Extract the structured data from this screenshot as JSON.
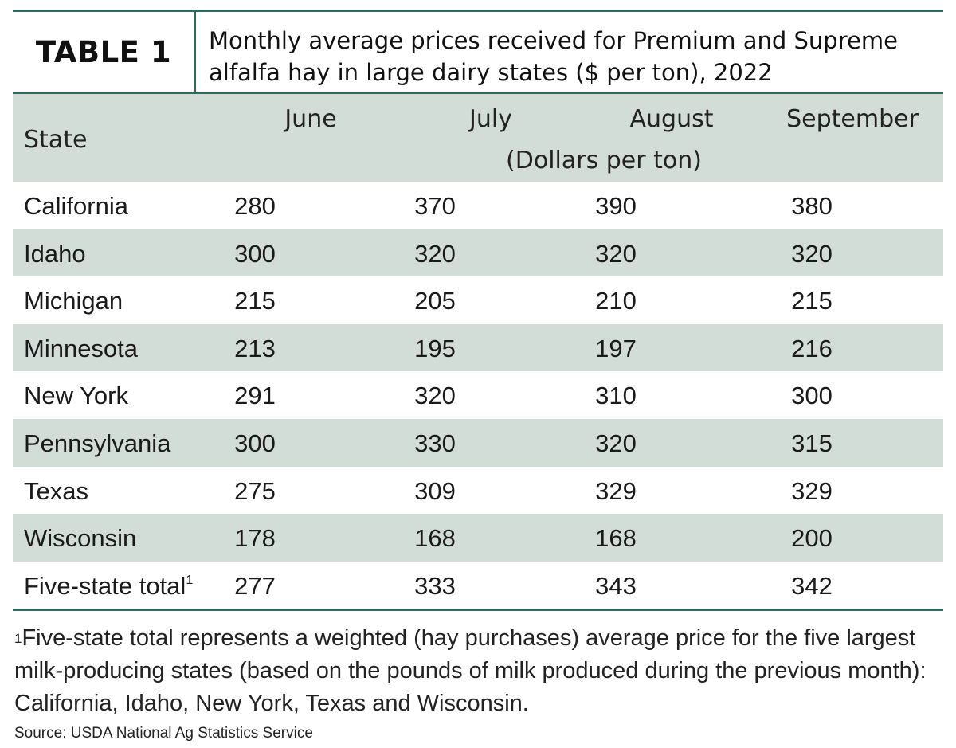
{
  "title": {
    "label": "TABLE 1",
    "text": "Monthly average prices received for Premium and Supreme alfalfa hay in large dairy states ($ per ton), 2022"
  },
  "header": {
    "state": "State",
    "months": [
      "June",
      "July",
      "August",
      "September"
    ],
    "unit": "(Dollars per ton)"
  },
  "rows": [
    {
      "state": "California",
      "values": [
        "280",
        "370",
        "390",
        "380"
      ]
    },
    {
      "state": "Idaho",
      "values": [
        "300",
        "320",
        "320",
        "320"
      ]
    },
    {
      "state": "Michigan",
      "values": [
        "215",
        "205",
        "210",
        "215"
      ]
    },
    {
      "state": "Minnesota",
      "values": [
        "213",
        "195",
        "197",
        "216"
      ]
    },
    {
      "state": "New York",
      "values": [
        "291",
        "320",
        "310",
        "300"
      ]
    },
    {
      "state": "Pennsylvania",
      "values": [
        "300",
        "330",
        "320",
        "315"
      ]
    },
    {
      "state": "Texas",
      "values": [
        "275",
        "309",
        "329",
        "329"
      ]
    },
    {
      "state": "Wisconsin",
      "values": [
        "178",
        "168",
        "168",
        "200"
      ]
    },
    {
      "state": "Five-state total",
      "sup": "1",
      "values": [
        "277",
        "333",
        "343",
        "342"
      ]
    }
  ],
  "footnote": {
    "marker": "1",
    "text": "Five-state total represents a weighted (hay purchases) average price for the five largest milk-producing states (based on the pounds of milk produced during the previous month): California, Idaho, New York, Texas and Wisconsin."
  },
  "source": "Source: USDA National Ag Statistics Service",
  "colors": {
    "accent": "#2f6b5a",
    "shade": "#d3ddd8"
  }
}
